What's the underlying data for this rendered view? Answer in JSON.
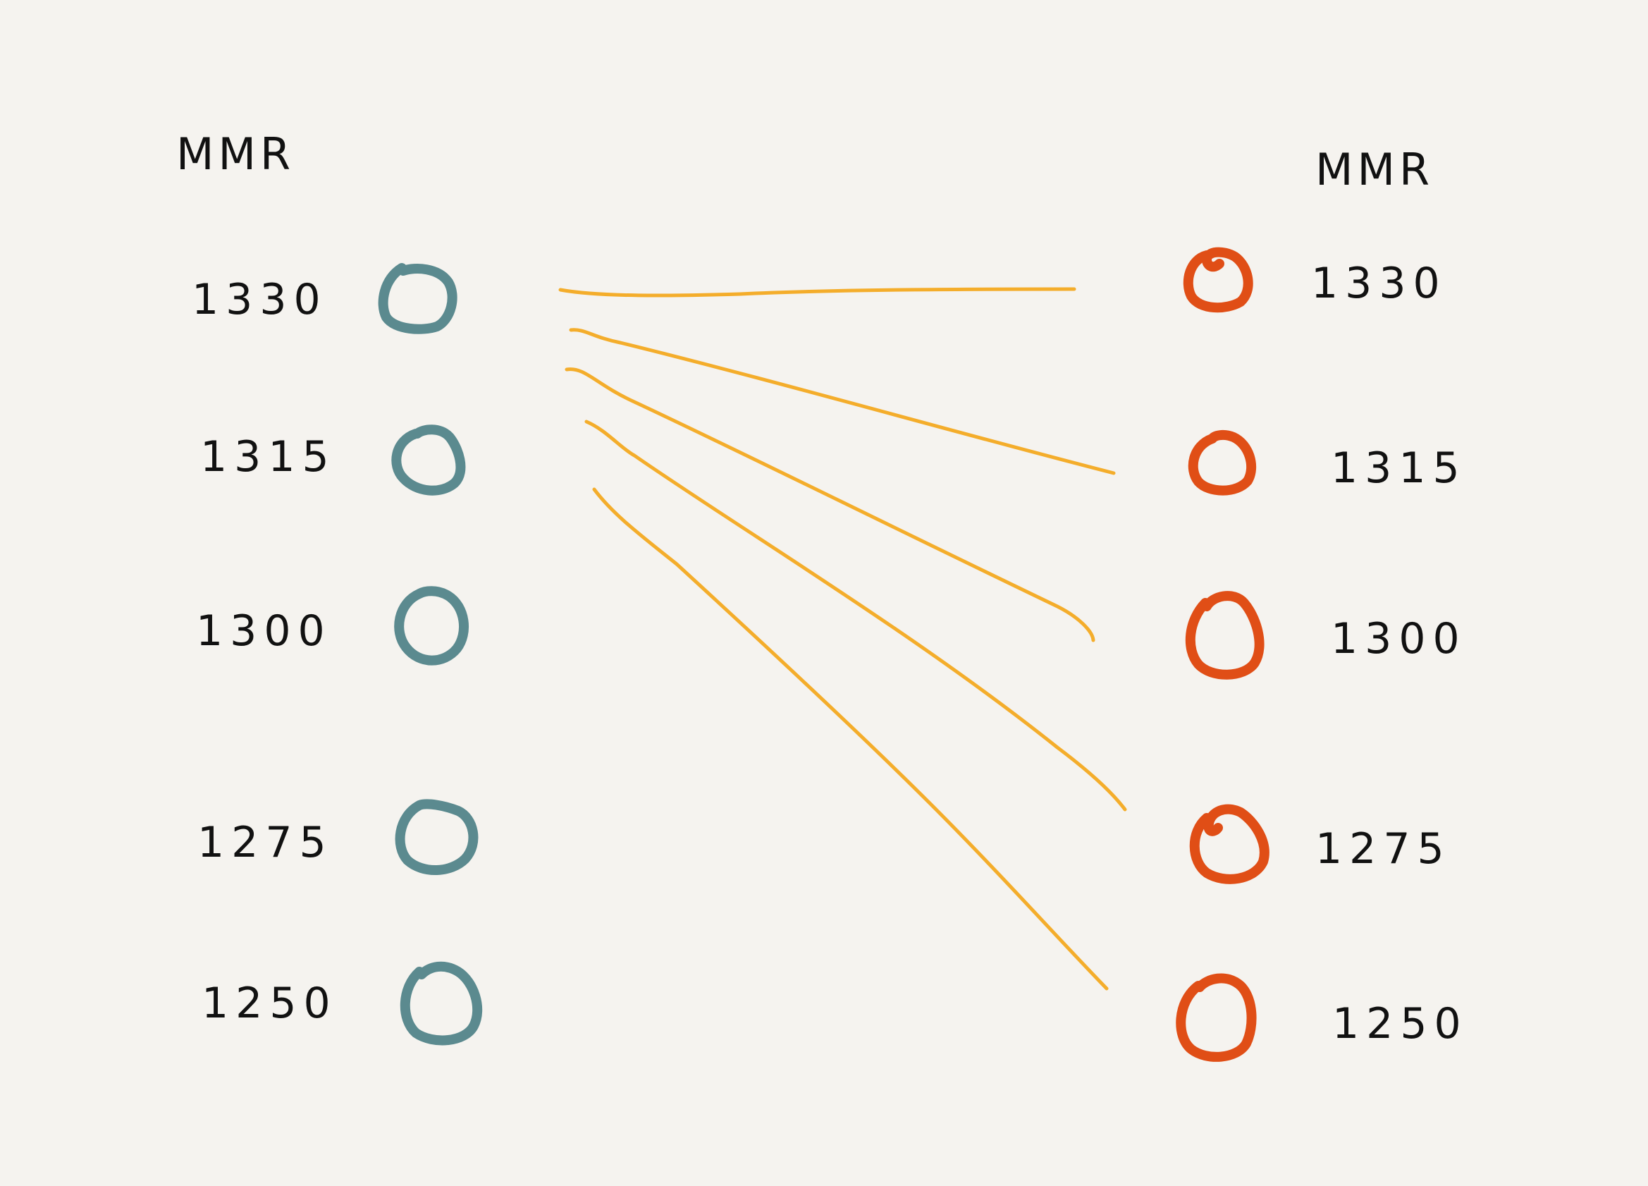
{
  "diagram": {
    "left": {
      "header": "MMR",
      "node_color": "#5b8a8f",
      "values": [
        "1330",
        "1315",
        "1300",
        "1275",
        "1250"
      ]
    },
    "right": {
      "header": "MMR",
      "node_color": "#e04e16",
      "values": [
        "1330",
        "1315",
        "1300",
        "1275",
        "1250"
      ]
    },
    "edge_color": "#f4ad2b",
    "edges": [
      {
        "from": "left:1330",
        "to": "right:1330"
      },
      {
        "from": "left:1330",
        "to": "right:1315"
      },
      {
        "from": "left:1330",
        "to": "right:1300"
      },
      {
        "from": "left:1330",
        "to": "right:1275"
      },
      {
        "from": "left:1330",
        "to": "right:1250"
      }
    ]
  }
}
